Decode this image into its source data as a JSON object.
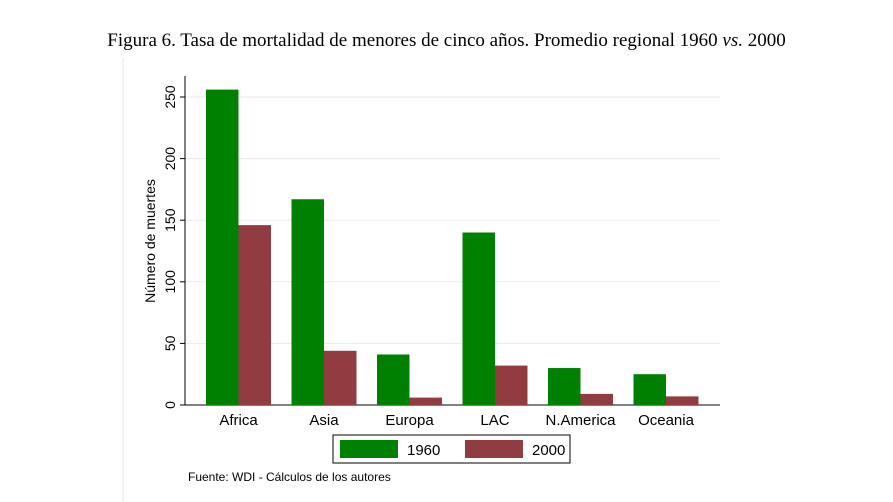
{
  "chart_data": {
    "type": "bar",
    "title": "Figura 6. Tasa de mortalidad de menores de cinco años. Promedio regional 1960",
    "title_italic": "vs.",
    "title_end": "2000",
    "categories": [
      "Africa",
      "Asia",
      "Europa",
      "LAC",
      "N.America",
      "Oceania"
    ],
    "series": [
      {
        "name": "1960",
        "color": "#008000",
        "values": [
          256,
          167,
          41,
          140,
          30,
          25
        ]
      },
      {
        "name": "2000",
        "color": "#903c41",
        "values": [
          146,
          44,
          6,
          32,
          9,
          7
        ]
      }
    ],
    "xlabel": "",
    "ylabel": "Número de muertes",
    "ylim": [
      0,
      270
    ],
    "yticks": [
      0,
      50,
      100,
      150,
      200,
      250
    ],
    "grid": true,
    "legend": "bottom",
    "source": "Fuente: WDI - Cálculos de los autores"
  }
}
